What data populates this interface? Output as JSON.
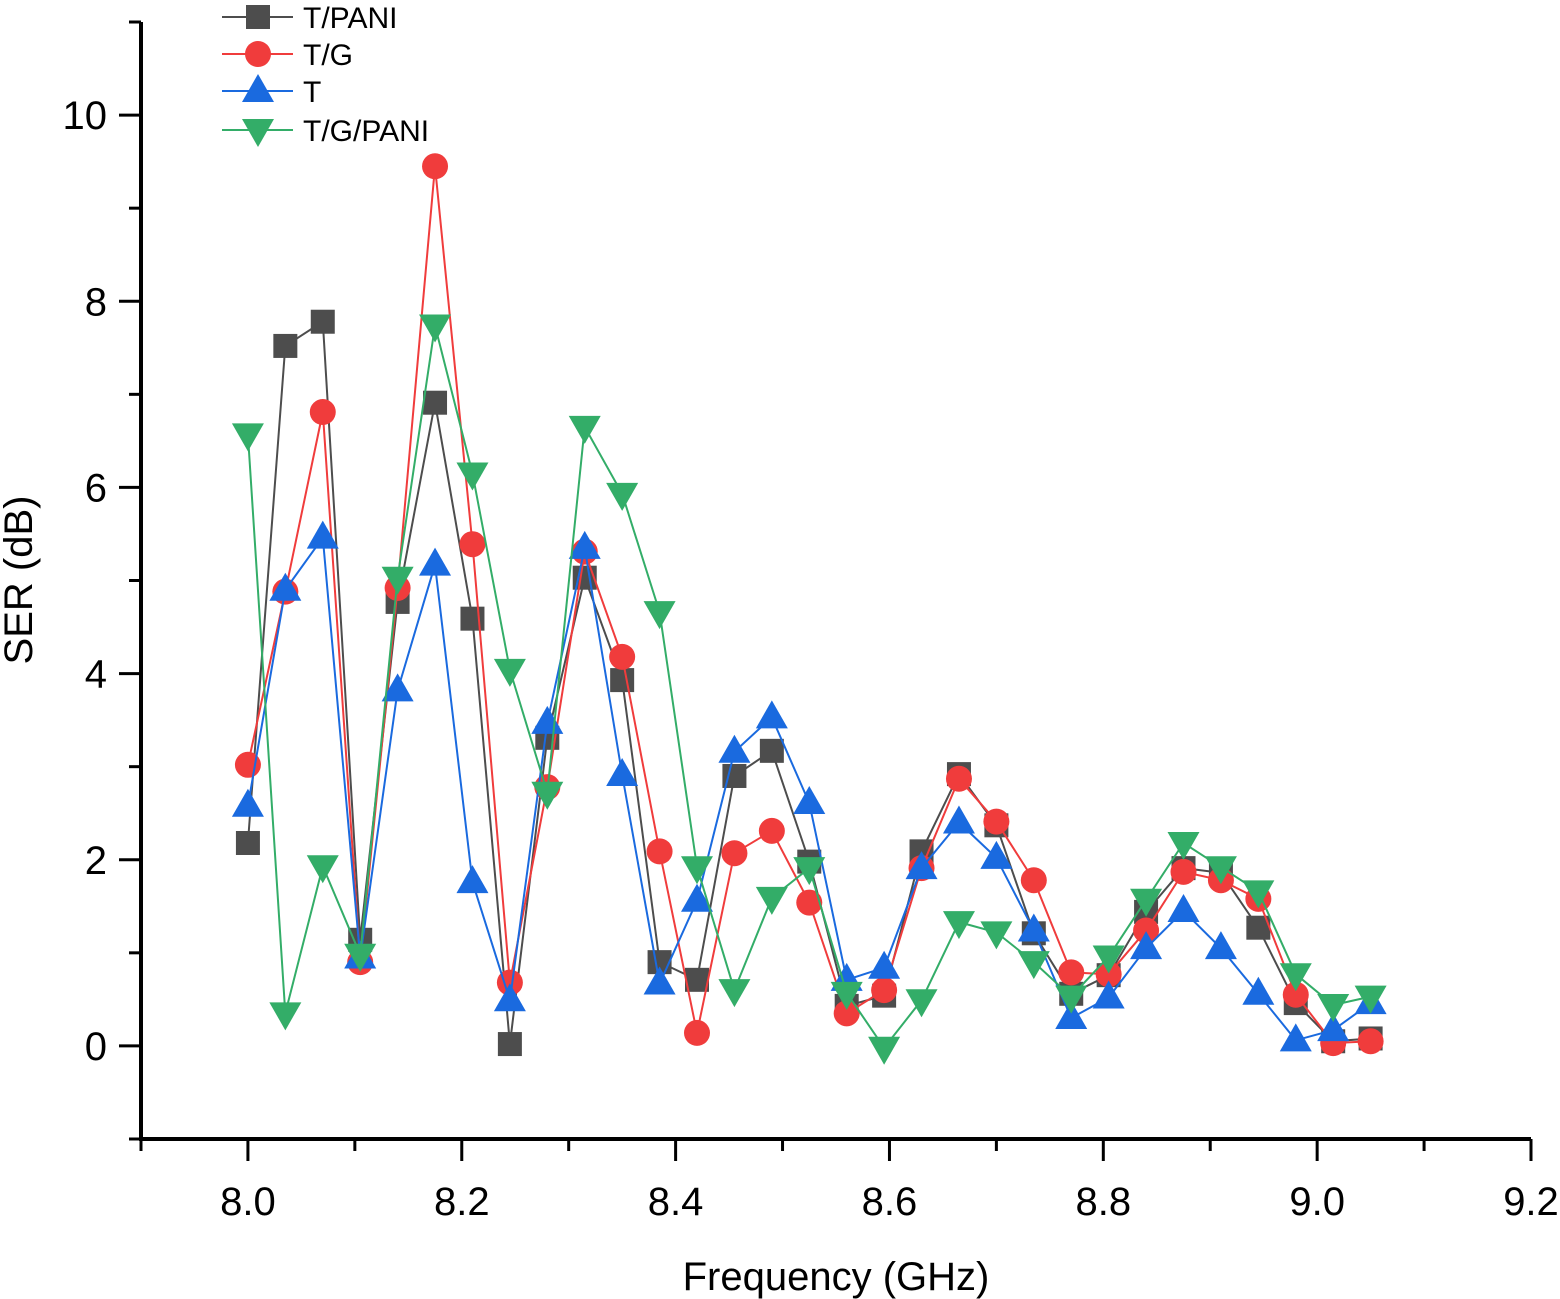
{
  "chart_data": {
    "type": "line",
    "title": "",
    "xlabel": "Frequency (GHz)",
    "ylabel": "SER (dB)",
    "xlim": [
      7.9,
      9.2
    ],
    "ylim": [
      -1,
      11
    ],
    "xticks": [
      8.0,
      8.2,
      8.4,
      8.6,
      8.8,
      9.0,
      9.2
    ],
    "xtick_labels": [
      "8.0",
      "8.2",
      "8.4",
      "8.6",
      "8.8",
      "9.0",
      "9.2"
    ],
    "yticks": [
      0,
      2,
      4,
      6,
      8,
      10
    ],
    "ytick_labels": [
      "0",
      "2",
      "4",
      "6",
      "8",
      "10"
    ],
    "grid": false,
    "legend_position": "top-left",
    "x": [
      8.0,
      8.035,
      8.07,
      8.105,
      8.14,
      8.175,
      8.21,
      8.245,
      8.28,
      8.315,
      8.35,
      8.385,
      8.42,
      8.455,
      8.49,
      8.525,
      8.56,
      8.595,
      8.63,
      8.665,
      8.7,
      8.735,
      8.77,
      8.805,
      8.84,
      8.875,
      8.91,
      8.945,
      8.98,
      9.015,
      9.05
    ],
    "series": [
      {
        "name": "T/PANI",
        "color": "#4d4d4d",
        "marker": "square",
        "values": [
          2.18,
          7.52,
          7.78,
          1.14,
          4.77,
          6.91,
          4.59,
          0.02,
          3.31,
          5.03,
          3.93,
          0.9,
          0.71,
          2.9,
          3.17,
          1.98,
          0.43,
          0.54,
          2.09,
          2.92,
          2.37,
          1.21,
          0.56,
          0.76,
          1.44,
          1.91,
          1.86,
          1.27,
          0.46,
          0.05,
          0.08
        ]
      },
      {
        "name": "T/G",
        "color": "#f03c3c",
        "marker": "circle",
        "values": [
          3.02,
          4.88,
          6.81,
          0.9,
          4.92,
          9.45,
          5.39,
          0.68,
          2.78,
          5.31,
          4.18,
          2.09,
          0.14,
          2.07,
          2.31,
          1.54,
          0.35,
          0.6,
          1.91,
          2.87,
          2.41,
          1.78,
          0.79,
          0.77,
          1.24,
          1.87,
          1.78,
          1.58,
          0.55,
          0.03,
          0.05
        ]
      },
      {
        "name": "T",
        "color": "#1a6adf",
        "marker": "triangle-up",
        "values": [
          2.58,
          4.9,
          5.46,
          0.95,
          3.82,
          5.17,
          1.76,
          0.49,
          3.47,
          5.35,
          2.91,
          0.67,
          1.56,
          3.16,
          3.53,
          2.61,
          0.71,
          0.84,
          1.91,
          2.4,
          2.02,
          1.24,
          0.3,
          0.52,
          1.05,
          1.45,
          1.05,
          0.56,
          0.06,
          0.17,
          0.46
        ]
      },
      {
        "name": "T/G/PANI",
        "color": "#33ad68",
        "marker": "triangle-down",
        "values": [
          6.57,
          0.35,
          1.93,
          0.98,
          5.03,
          7.74,
          6.15,
          4.04,
          2.72,
          6.65,
          5.93,
          4.66,
          1.92,
          0.6,
          1.59,
          1.91,
          0.57,
          -0.02,
          0.49,
          1.33,
          1.22,
          0.9,
          0.53,
          0.96,
          1.57,
          2.18,
          1.92,
          1.66,
          0.77,
          0.44,
          0.53
        ]
      }
    ]
  }
}
